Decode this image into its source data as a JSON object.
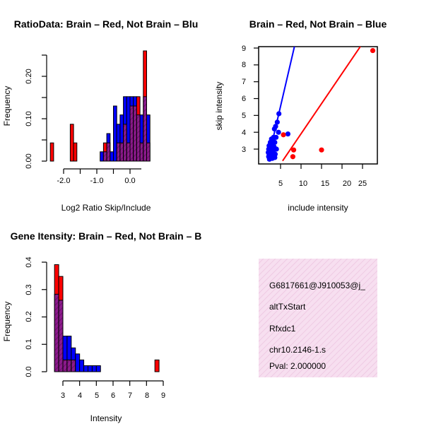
{
  "chart_data": [
    {
      "type": "histogram",
      "title": "RatioData: Brain – Red, Not Brain – Blu",
      "xlabel": "Log2 Ratio Skip/Include",
      "ylabel": "Frequency",
      "xlim": [
        -2.5,
        0.75
      ],
      "ylim": [
        0,
        0.25
      ],
      "xticks": [
        "-2.0",
        "-1.0",
        "0.0"
      ],
      "yticks": [
        "0.00",
        "0.10",
        "0.20"
      ],
      "colors": {
        "red": "#ff0000",
        "blue": "#0000ff",
        "overlap": "#8b1a8b"
      },
      "bin_starts": [
        -2.4,
        -2.3,
        -2.2,
        -2.1,
        -2.0,
        -1.9,
        -1.8,
        -1.7,
        -1.6,
        -1.5,
        -1.4,
        -1.3,
        -1.2,
        -1.1,
        -1.0,
        -0.9,
        -0.8,
        -0.7,
        -0.6,
        -0.5,
        -0.4,
        -0.3,
        -0.2,
        -0.1,
        0.0,
        0.1,
        0.2,
        0.3,
        0.4,
        0.5,
        0.6
      ],
      "bin_width": 0.1,
      "series": [
        {
          "name": "Brain",
          "color": "red",
          "values": [
            0.043,
            0,
            0,
            0,
            0,
            0,
            0.087,
            0.043,
            0,
            0,
            0,
            0,
            0,
            0,
            0,
            0,
            0.043,
            0.043,
            0,
            0,
            0.043,
            0.043,
            0.087,
            0.043,
            0.13,
            0.13,
            0.152,
            0.043,
            0.26,
            0.043,
            0
          ]
        },
        {
          "name": "Not Brain",
          "color": "blue",
          "values": [
            0,
            0,
            0,
            0,
            0,
            0,
            0,
            0,
            0,
            0,
            0,
            0,
            0,
            0,
            0,
            0.022,
            0.022,
            0.065,
            0.022,
            0.13,
            0.087,
            0.109,
            0.152,
            0.152,
            0.152,
            0.152,
            0.109,
            0.109,
            0.152,
            0.109,
            0
          ]
        }
      ]
    },
    {
      "type": "scatter",
      "title": "Brain – Red, Not Brain – Blue",
      "xlabel": "include intensity",
      "ylabel": "skip intensity",
      "xlim": [
        1.5,
        28
      ],
      "ylim": [
        2.3,
        9.1
      ],
      "xticks": [
        "5",
        "10",
        "15",
        "20",
        "25"
      ],
      "yticks": [
        "3",
        "4",
        "5",
        "6",
        "7",
        "8",
        "9"
      ],
      "series": [
        {
          "name": "Brain",
          "color": "#ff0000",
          "points": [
            [
              27.5,
              8.85
            ],
            [
              15,
              2.95
            ],
            [
              8.2,
              2.95
            ],
            [
              8,
              2.55
            ],
            [
              5.7,
              3.85
            ]
          ],
          "fit_line": [
            [
              5.5,
              2.3
            ],
            [
              24.5,
              9.1
            ]
          ]
        },
        {
          "name": "Not Brain",
          "color": "#0000ff",
          "points": [
            [
              4.6,
              5.1
            ],
            [
              3.8,
              4.35
            ],
            [
              4.2,
              4.6
            ],
            [
              4.5,
              4.0
            ],
            [
              3.5,
              4.2
            ],
            [
              6.8,
              3.9
            ],
            [
              3.3,
              3.7
            ],
            [
              3.9,
              3.7
            ],
            [
              2.8,
              3.6
            ],
            [
              3.2,
              3.5
            ],
            [
              2.5,
              3.4
            ],
            [
              3.6,
              3.4
            ],
            [
              2.9,
              3.3
            ],
            [
              2.2,
              3.2
            ],
            [
              2.7,
              3.2
            ],
            [
              3.4,
              3.15
            ],
            [
              2.4,
              3.1
            ],
            [
              3.0,
              3.05
            ],
            [
              2.1,
              3.0
            ],
            [
              2.6,
              3.0
            ],
            [
              3.3,
              2.95
            ],
            [
              2.3,
              2.9
            ],
            [
              2.8,
              2.85
            ],
            [
              2.0,
              2.8
            ],
            [
              3.1,
              2.8
            ],
            [
              2.5,
              2.75
            ],
            [
              2.2,
              2.7
            ],
            [
              2.9,
              2.65
            ],
            [
              2.4,
              2.6
            ],
            [
              3.5,
              2.6
            ],
            [
              2.1,
              2.55
            ],
            [
              2.7,
              2.5
            ],
            [
              3.0,
              2.45
            ],
            [
              2.3,
              2.4
            ],
            [
              3.6,
              2.5
            ],
            [
              4.0,
              3.0
            ],
            [
              3.7,
              2.7
            ]
          ],
          "fit_line": [
            [
              1.9,
              2.3
            ],
            [
              8.4,
              9.1
            ]
          ]
        }
      ]
    },
    {
      "type": "histogram",
      "title": "Gene Itensity: Brain – Red, Not Brain – B",
      "xlabel": "Intensity",
      "ylabel": "Frequency",
      "xlim": [
        2.45,
        9.05
      ],
      "ylim": [
        0,
        0.4
      ],
      "xticks": [
        "3",
        "4",
        "5",
        "6",
        "7",
        "8",
        "9"
      ],
      "yticks": [
        "0.0",
        "0.1",
        "0.2",
        "0.3",
        "0.4"
      ],
      "bin_starts": [
        2.5,
        2.75,
        3.0,
        3.25,
        3.5,
        3.75,
        4.0,
        4.25,
        4.5,
        4.75,
        5.0,
        5.25,
        5.5,
        5.75,
        6.0,
        6.25,
        6.5,
        6.75,
        7.0,
        7.25,
        7.5,
        7.75,
        8.0,
        8.25,
        8.5
      ],
      "bin_width": 0.25,
      "series": [
        {
          "name": "Brain",
          "color": "red",
          "values": [
            0.391,
            0.348,
            0.043,
            0.043,
            0.043,
            0,
            0,
            0,
            0,
            0,
            0,
            0,
            0,
            0,
            0,
            0,
            0,
            0,
            0,
            0,
            0,
            0,
            0,
            0,
            0.043
          ]
        },
        {
          "name": "Not Brain",
          "color": "blue",
          "values": [
            0.283,
            0.261,
            0.13,
            0.13,
            0.087,
            0.065,
            0.043,
            0.022,
            0.022,
            0.022,
            0.022,
            0,
            0,
            0,
            0,
            0,
            0,
            0,
            0,
            0,
            0,
            0,
            0,
            0,
            0
          ]
        }
      ]
    }
  ],
  "info_panel": {
    "background": "#f5d9ec",
    "line1": "G6817661@J910053@j_",
    "line2": "altTxStart",
    "line3": "Rfxdc1",
    "line4": "chr10.2146-1.s",
    "pval": "Pval: 2.000000",
    "pval_color": "#8b0000"
  }
}
